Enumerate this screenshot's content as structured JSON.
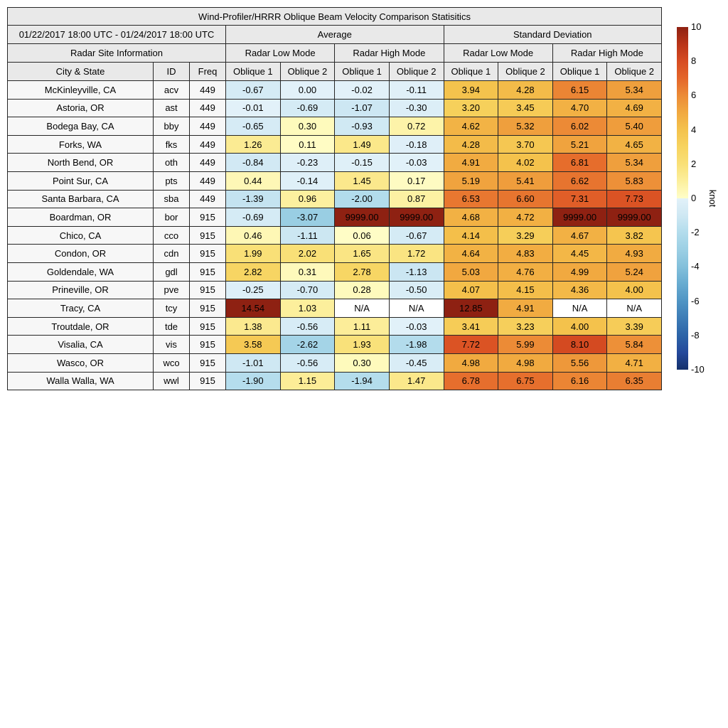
{
  "table": {
    "date_range": "01/22/2017 18:00 UTC - 01/24/2017 18:00 UTC",
    "group_average": "Average",
    "group_std": "Standard Deviation",
    "site_info": "Radar Site Information",
    "low_mode": "Radar Low Mode",
    "high_mode": "Radar High Mode",
    "col_city": "City & State",
    "col_id": "ID",
    "col_freq": "Freq",
    "col_oblique1": "Oblique 1",
    "col_oblique2": "Oblique 2",
    "na_text": "N/A"
  },
  "chart_data": {
    "type": "table",
    "title": "Wind-Profiler/HRRR Oblique Beam Velocity Comparison Statisitics",
    "subtitle": "01/22/2017 18:00 UTC - 01/24/2017 18:00 UTC",
    "value_unit": "knot",
    "column_groups": [
      "Radar Site Information",
      "Average / Radar Low Mode",
      "Average / Radar High Mode",
      "Standard Deviation / Radar Low Mode",
      "Standard Deviation / Radar High Mode"
    ],
    "columns": [
      "City & State",
      "ID",
      "Freq",
      "Avg Low Oblique 1",
      "Avg Low Oblique 2",
      "Avg High Oblique 1",
      "Avg High Oblique 2",
      "Std Low Oblique 1",
      "Std Low Oblique 2",
      "Std High Oblique 1",
      "Std High Oblique 2"
    ],
    "rows": [
      {
        "city": "McKinleyville, CA",
        "id": "acv",
        "freq": "449",
        "values": [
          "-0.67",
          "0.00",
          "-0.02",
          "-0.11",
          "3.94",
          "4.28",
          "6.15",
          "5.34"
        ]
      },
      {
        "city": "Astoria, OR",
        "id": "ast",
        "freq": "449",
        "values": [
          "-0.01",
          "-0.69",
          "-1.07",
          "-0.30",
          "3.20",
          "3.45",
          "4.70",
          "4.69"
        ]
      },
      {
        "city": "Bodega Bay, CA",
        "id": "bby",
        "freq": "449",
        "values": [
          "-0.65",
          "0.30",
          "-0.93",
          "0.72",
          "4.62",
          "5.32",
          "6.02",
          "5.40"
        ]
      },
      {
        "city": "Forks, WA",
        "id": "fks",
        "freq": "449",
        "values": [
          "1.26",
          "0.11",
          "1.49",
          "-0.18",
          "4.28",
          "3.70",
          "5.21",
          "4.65"
        ]
      },
      {
        "city": "North Bend, OR",
        "id": "oth",
        "freq": "449",
        "values": [
          "-0.84",
          "-0.23",
          "-0.15",
          "-0.03",
          "4.91",
          "4.02",
          "6.81",
          "5.34"
        ]
      },
      {
        "city": "Point Sur, CA",
        "id": "pts",
        "freq": "449",
        "values": [
          "0.44",
          "-0.14",
          "1.45",
          "0.17",
          "5.19",
          "5.41",
          "6.62",
          "5.83"
        ]
      },
      {
        "city": "Santa Barbara, CA",
        "id": "sba",
        "freq": "449",
        "values": [
          "-1.39",
          "0.96",
          "-2.00",
          "0.87",
          "6.53",
          "6.60",
          "7.31",
          "7.73"
        ]
      },
      {
        "city": "Boardman, OR",
        "id": "bor",
        "freq": "915",
        "values": [
          "-0.69",
          "-3.07",
          "9999.00",
          "9999.00",
          "4.68",
          "4.72",
          "9999.00",
          "9999.00"
        ]
      },
      {
        "city": "Chico, CA",
        "id": "cco",
        "freq": "915",
        "values": [
          "0.46",
          "-1.11",
          "0.06",
          "-0.67",
          "4.14",
          "3.29",
          "4.67",
          "3.82"
        ]
      },
      {
        "city": "Condon, OR",
        "id": "cdn",
        "freq": "915",
        "values": [
          "1.99",
          "2.02",
          "1.65",
          "1.72",
          "4.64",
          "4.83",
          "4.45",
          "4.93"
        ]
      },
      {
        "city": "Goldendale, WA",
        "id": "gdl",
        "freq": "915",
        "values": [
          "2.82",
          "0.31",
          "2.78",
          "-1.13",
          "5.03",
          "4.76",
          "4.99",
          "5.24"
        ]
      },
      {
        "city": "Prineville, OR",
        "id": "pve",
        "freq": "915",
        "values": [
          "-0.25",
          "-0.70",
          "0.28",
          "-0.50",
          "4.07",
          "4.15",
          "4.36",
          "4.00"
        ]
      },
      {
        "city": "Tracy, CA",
        "id": "tcy",
        "freq": "915",
        "values": [
          "14.54",
          "1.03",
          "N/A",
          "N/A",
          "12.85",
          "4.91",
          "N/A",
          "N/A"
        ]
      },
      {
        "city": "Troutdale, OR",
        "id": "tde",
        "freq": "915",
        "values": [
          "1.38",
          "-0.56",
          "1.11",
          "-0.03",
          "3.41",
          "3.23",
          "4.00",
          "3.39"
        ]
      },
      {
        "city": "Visalia, CA",
        "id": "vis",
        "freq": "915",
        "values": [
          "3.58",
          "-2.62",
          "1.93",
          "-1.98",
          "7.72",
          "5.99",
          "8.10",
          "5.84"
        ]
      },
      {
        "city": "Wasco, OR",
        "id": "wco",
        "freq": "915",
        "values": [
          "-1.01",
          "-0.56",
          "0.30",
          "-0.45",
          "4.98",
          "4.98",
          "5.56",
          "4.71"
        ]
      },
      {
        "city": "Walla Walla, WA",
        "id": "wwl",
        "freq": "915",
        "values": [
          "-1.90",
          "1.15",
          "-1.94",
          "1.47",
          "6.78",
          "6.75",
          "6.16",
          "6.35"
        ]
      }
    ],
    "colorbar": {
      "label": "knot",
      "min": -10,
      "max": 10,
      "ticks": [
        10,
        8,
        6,
        4,
        2,
        0,
        -2,
        -4,
        -6,
        -8,
        -10
      ],
      "warm_anchors": [
        "#fffec9",
        "#fcef9d",
        "#f9e077",
        "#f7d35f",
        "#f4c24c",
        "#f1a940",
        "#ec8b36",
        "#e4662a",
        "#d74c22",
        "#b93418",
        "#8e2112"
      ],
      "cool_anchors": [
        "#e2f1f9",
        "#cfe8f3",
        "#b2dcec",
        "#9bcfe4",
        "#83c0db",
        "#67abd0",
        "#4f94c4",
        "#3d7cb6",
        "#2c64a8",
        "#24499b",
        "#14306b"
      ],
      "na_color": "#ffffff"
    }
  }
}
